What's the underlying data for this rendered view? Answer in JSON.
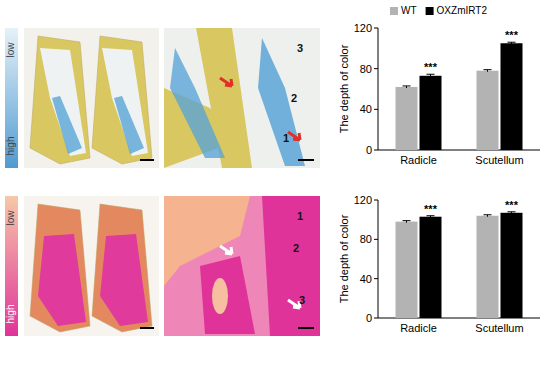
{
  "panels": [
    {
      "scale_labels": [
        "low",
        "high"
      ],
      "region_labels": [
        "3",
        "2",
        "1"
      ]
    },
    {
      "scale_labels": [
        "low",
        "high"
      ],
      "region_labels": [
        "1",
        "2",
        "3"
      ]
    }
  ],
  "chart_data": [
    {
      "type": "bar",
      "y_label": "The depth of color",
      "categories": [
        "Radicle",
        "Scutellum"
      ],
      "series": [
        {
          "name": "WT",
          "color": "#b3b3b3",
          "values": [
            62,
            78
          ],
          "errors": [
            1,
            1
          ]
        },
        {
          "name": "OXZmIRT2",
          "color": "#000000",
          "values": [
            73,
            105
          ],
          "errors": [
            1.5,
            1
          ]
        }
      ],
      "significance": [
        "***",
        "***"
      ],
      "ylim": [
        0,
        120
      ],
      "yticks": [
        0,
        40,
        80,
        120
      ],
      "legend": "top"
    },
    {
      "type": "bar",
      "y_label": "The depth of color",
      "categories": [
        "Radicle",
        "Scutellum"
      ],
      "series": [
        {
          "color": "#b3b3b3",
          "values": [
            98,
            104
          ],
          "errors": [
            1,
            1
          ]
        },
        {
          "color": "#000000",
          "values": [
            103,
            107
          ],
          "errors": [
            1,
            1
          ]
        }
      ],
      "significance": [
        "***",
        "***"
      ],
      "ylim": [
        0,
        120
      ],
      "yticks": [
        0,
        40,
        80,
        120
      ]
    }
  ]
}
